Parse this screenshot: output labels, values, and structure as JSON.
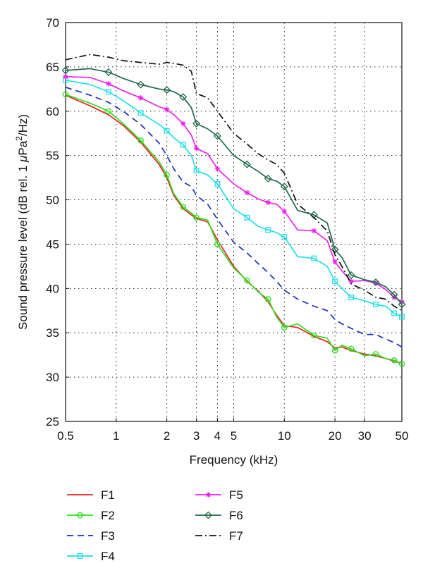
{
  "chart_data": {
    "type": "line",
    "xlabel": "Frequency (kHz)",
    "ylabel_main": "Sound pressure level (dB rel. 1 ",
    "ylabel_mu": "μ",
    "ylabel_unit": "Pa",
    "ylabel_sup": "2",
    "ylabel_tail": "/Hz)",
    "xscale": "log",
    "xlim": [
      0.5,
      50
    ],
    "ylim": [
      25,
      70
    ],
    "grid": true,
    "legend_placement": "below",
    "x_ticks": [
      0.5,
      1,
      2,
      3,
      4,
      5,
      10,
      20,
      30,
      50
    ],
    "x_tick_labels": [
      "0.5",
      "1",
      "2",
      "3",
      "4",
      "5",
      "10",
      "20",
      "30",
      "50"
    ],
    "y_ticks": [
      25,
      30,
      35,
      40,
      45,
      50,
      55,
      60,
      65,
      70
    ],
    "y_tick_labels": [
      "25",
      "30",
      "35",
      "40",
      "45",
      "50",
      "55",
      "60",
      "65",
      "70"
    ],
    "series": [
      {
        "name": "F1",
        "color": "#e8231e",
        "dash": "",
        "marker": "none",
        "marker_every": 0,
        "x": [
          0.5,
          0.7,
          0.9,
          1.1,
          1.4,
          1.8,
          2.0,
          2.2,
          2.5,
          2.8,
          3.0,
          3.5,
          4.0,
          5.0,
          6.0,
          7.0,
          8.0,
          9.0,
          10.0,
          12.0,
          15.0,
          18.0,
          20.0,
          22.0,
          25.0,
          30.0,
          35.0,
          40.0,
          45.0,
          50.0
        ],
        "y": [
          61.8,
          60.6,
          59.6,
          58.4,
          56.5,
          54.0,
          52.5,
          50.5,
          49.0,
          48.3,
          47.9,
          47.5,
          45.5,
          42.5,
          40.8,
          39.7,
          38.5,
          37.0,
          35.8,
          35.6,
          34.6,
          34.0,
          33.3,
          33.4,
          33.0,
          32.6,
          32.4,
          32.1,
          31.8,
          31.5
        ]
      },
      {
        "name": "F2",
        "color": "#33dd22",
        "dash": "",
        "marker": "circle",
        "marker_every": 2,
        "x": [
          0.5,
          0.7,
          0.9,
          1.1,
          1.4,
          1.8,
          2.0,
          2.2,
          2.5,
          2.8,
          3.0,
          3.5,
          4.0,
          5.0,
          6.0,
          7.0,
          8.0,
          9.0,
          10.0,
          12.0,
          15.0,
          18.0,
          20.0,
          22.0,
          25.0,
          30.0,
          35.0,
          40.0,
          45.0,
          50.0
        ],
        "y": [
          61.9,
          60.9,
          60.0,
          58.6,
          56.7,
          54.3,
          52.8,
          50.7,
          49.2,
          48.5,
          48.0,
          47.7,
          45.0,
          42.3,
          40.9,
          39.6,
          38.8,
          36.8,
          35.6,
          36.0,
          34.7,
          34.4,
          33.0,
          33.6,
          33.2,
          32.4,
          32.6,
          32.1,
          31.9,
          31.5
        ]
      },
      {
        "name": "F3",
        "color": "#1a2fc0",
        "dash": "9 6",
        "marker": "none",
        "marker_every": 0,
        "x": [
          0.5,
          0.7,
          0.9,
          1.1,
          1.4,
          1.8,
          2.0,
          2.2,
          2.5,
          2.8,
          3.0,
          3.5,
          4.0,
          5.0,
          6.0,
          7.0,
          8.0,
          9.0,
          10.0,
          12.0,
          15.0,
          18.0,
          20.0,
          22.0,
          25.0,
          30.0,
          35.0,
          40.0,
          45.0,
          50.0
        ],
        "y": [
          62.7,
          61.8,
          61.0,
          60.0,
          58.5,
          56.4,
          55.0,
          53.5,
          52.0,
          51.5,
          50.5,
          49.5,
          47.8,
          45.2,
          44.0,
          42.8,
          41.8,
          40.8,
          39.8,
          38.8,
          38.0,
          37.5,
          36.5,
          36.0,
          35.5,
          34.8,
          34.8,
          34.3,
          33.9,
          33.4
        ]
      },
      {
        "name": "F4",
        "color": "#22e0e8",
        "dash": "",
        "marker": "square",
        "marker_every": 2,
        "x": [
          0.5,
          0.7,
          0.9,
          1.1,
          1.4,
          1.8,
          2.0,
          2.2,
          2.5,
          2.8,
          3.0,
          3.5,
          4.0,
          5.0,
          6.0,
          7.0,
          8.0,
          9.0,
          10.0,
          12.0,
          15.0,
          18.0,
          20.0,
          22.0,
          25.0,
          30.0,
          35.0,
          40.0,
          45.0,
          50.0
        ],
        "y": [
          63.5,
          63.0,
          62.2,
          61.2,
          59.8,
          58.5,
          57.8,
          57.0,
          56.2,
          55.0,
          53.3,
          52.8,
          51.8,
          49.0,
          48.0,
          47.0,
          46.6,
          46.3,
          45.8,
          43.6,
          43.4,
          42.5,
          40.8,
          40.0,
          39.0,
          38.6,
          38.2,
          38.0,
          37.2,
          36.8
        ]
      },
      {
        "name": "F5",
        "color": "#ee22ee",
        "dash": "",
        "marker": "star",
        "marker_every": 2,
        "x": [
          0.5,
          0.7,
          0.9,
          1.1,
          1.4,
          1.8,
          2.0,
          2.2,
          2.5,
          2.8,
          3.0,
          3.5,
          4.0,
          5.0,
          6.0,
          7.0,
          8.0,
          9.0,
          10.0,
          12.0,
          15.0,
          18.0,
          20.0,
          22.0,
          25.0,
          30.0,
          35.0,
          40.0,
          45.0,
          50.0
        ],
        "y": [
          63.9,
          63.8,
          63.1,
          62.3,
          61.5,
          60.5,
          60.2,
          59.6,
          58.6,
          57.3,
          55.8,
          55.2,
          53.5,
          51.8,
          50.8,
          50.1,
          49.7,
          49.5,
          48.7,
          46.6,
          46.5,
          45.4,
          43.0,
          42.0,
          40.8,
          40.9,
          40.6,
          39.9,
          39.0,
          38.5
        ]
      },
      {
        "name": "F6",
        "color": "#1f6b4a",
        "dash": "",
        "marker": "diamond",
        "marker_every": 2,
        "x": [
          0.5,
          0.7,
          0.9,
          1.1,
          1.4,
          1.8,
          2.0,
          2.2,
          2.5,
          2.8,
          3.0,
          3.5,
          4.0,
          5.0,
          6.0,
          7.0,
          8.0,
          9.0,
          10.0,
          12.0,
          15.0,
          18.0,
          20.0,
          22.0,
          25.0,
          30.0,
          35.0,
          40.0,
          45.0,
          50.0
        ],
        "y": [
          64.6,
          64.8,
          64.4,
          63.7,
          63.0,
          62.5,
          62.4,
          62.2,
          61.6,
          60.4,
          58.6,
          58.0,
          57.2,
          55.0,
          54.0,
          53.2,
          52.4,
          52.1,
          51.5,
          48.8,
          48.3,
          47.4,
          44.4,
          43.5,
          41.5,
          41.0,
          40.7,
          40.2,
          39.3,
          38.2
        ]
      },
      {
        "name": "F7",
        "color": "#111111",
        "dash": "10 4 2 4",
        "marker": "none",
        "marker_every": 0,
        "x": [
          0.5,
          0.7,
          0.9,
          1.1,
          1.4,
          1.8,
          2.0,
          2.2,
          2.5,
          2.8,
          3.0,
          3.5,
          4.0,
          5.0,
          6.0,
          7.0,
          8.0,
          9.0,
          10.0,
          12.0,
          15.0,
          18.0,
          20.0,
          22.0,
          25.0,
          30.0,
          35.0,
          40.0,
          45.0,
          50.0
        ],
        "y": [
          65.8,
          66.4,
          66.1,
          65.7,
          65.5,
          65.3,
          65.5,
          65.4,
          65.2,
          64.5,
          62.0,
          61.5,
          60.0,
          57.5,
          56.3,
          55.2,
          54.5,
          54.0,
          53.0,
          49.5,
          48.0,
          46.5,
          43.8,
          42.5,
          40.5,
          39.8,
          39.0,
          38.8,
          38.0,
          37.5
        ]
      }
    ]
  }
}
